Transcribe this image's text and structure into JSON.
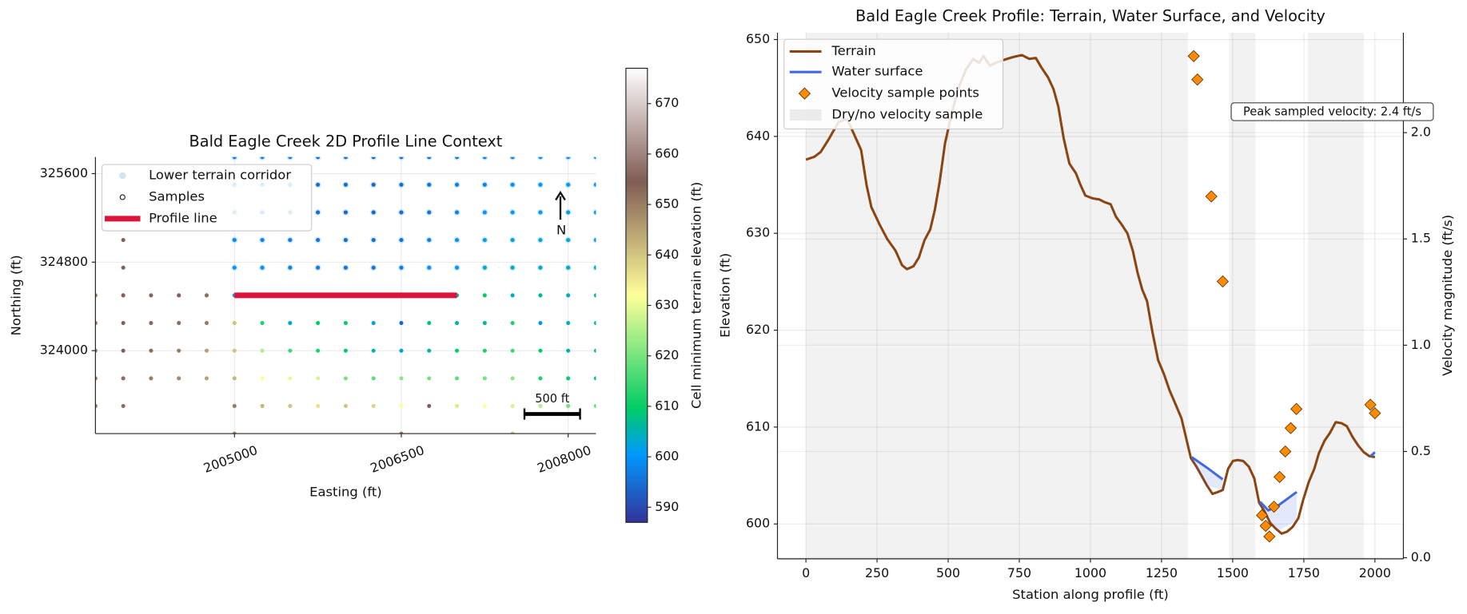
{
  "chart_data": [
    {
      "type": "scatter",
      "title": "Bald Eagle Creek 2D Profile Line Context",
      "x_label": "Easting (ft)",
      "y_label": "Northing (ft)",
      "xlim": [
        2003750,
        2008250
      ],
      "ylim": [
        323250,
        325750
      ],
      "xticks": [
        2005000,
        2006500,
        2008000
      ],
      "yticks": [
        324000,
        324800,
        325600
      ],
      "grid": true,
      "legend": "upper left",
      "colormap": "terrain",
      "clim": [
        587,
        677
      ],
      "colorbar_label": "Cell minimum terrain elevation (ft)",
      "cticks": [
        590,
        600,
        610,
        620,
        630,
        640,
        650,
        660,
        670
      ],
      "corridor": {
        "name": "Lower terrain corridor",
        "color": "#a6cee3",
        "eastings": [
          2005000,
          2005250,
          2005500,
          2005750,
          2006000,
          2006250,
          2006500,
          2006750,
          2007000,
          2007250,
          2007500,
          2007750,
          2008000,
          2008250
        ],
        "northings": [
          325750,
          325500,
          325250,
          325000,
          324750
        ]
      },
      "samples": {
        "name": "Samples",
        "eastings": [
          2003750,
          2004000,
          2004250,
          2004500,
          2004750,
          2005000,
          2005250,
          2005500,
          2005750,
          2006000,
          2006250,
          2006500,
          2006750,
          2007000,
          2007250,
          2007500,
          2007750,
          2008000,
          2008250
        ],
        "northings": [
          325750,
          325500,
          325250,
          325000,
          324750,
          324500,
          324250,
          324000,
          323750,
          323500,
          323250
        ],
        "elevation": [
          [
            null,
            null,
            null,
            null,
            null,
            598,
            597,
            597,
            596,
            596,
            595,
            596,
            596,
            597,
            598,
            598,
            599,
            600,
            600
          ],
          [
            null,
            null,
            null,
            null,
            null,
            597,
            596,
            596,
            595,
            595,
            594,
            595,
            596,
            597,
            598,
            599,
            600,
            601,
            600
          ],
          [
            null,
            null,
            null,
            null,
            null,
            598,
            597,
            596,
            595,
            594,
            594,
            595,
            596,
            598,
            600,
            601,
            602,
            602,
            601
          ],
          [
            null,
            655,
            null,
            null,
            null,
            599,
            598,
            597,
            596,
            595,
            595,
            596,
            598,
            600,
            602,
            603,
            603,
            603,
            602
          ],
          [
            null,
            655,
            null,
            null,
            null,
            600,
            599,
            598,
            597,
            596,
            596,
            597,
            599,
            601,
            603,
            604,
            604,
            604,
            603
          ],
          [
            650,
            655,
            656,
            655,
            652,
            601,
            600,
            599,
            598,
            597,
            597,
            598,
            600,
            606,
            610,
            604,
            606,
            604,
            605
          ],
          [
            650,
            655,
            656,
            652,
            650,
            640,
            612,
            603,
            610,
            610,
            603,
            594,
            608,
            605,
            606,
            612,
            600,
            604,
            606
          ],
          [
            650,
            655,
            652,
            650,
            645,
            640,
            625,
            615,
            612,
            610,
            606,
            603,
            606,
            610,
            612,
            615,
            610,
            606,
            608
          ],
          [
            650,
            652,
            650,
            648,
            645,
            642,
            632,
            630,
            628,
            620,
            618,
            622,
            620,
            618,
            620,
            622,
            612,
            610,
            608
          ],
          [
            650,
            652,
            null,
            null,
            null,
            650,
            642,
            640,
            636,
            640,
            638,
            632,
            655,
            636,
            632,
            628,
            625,
            620,
            618
          ],
          [
            null,
            null,
            null,
            null,
            null,
            648,
            null,
            null,
            null,
            null,
            null,
            650,
            null,
            null,
            null,
            640,
            null,
            null,
            null
          ]
        ]
      },
      "profile": {
        "name": "Profile line",
        "color": "#dc143c",
        "x": [
          2005000,
          2007000
        ],
        "y": [
          324500,
          324500
        ]
      },
      "north_label": "N",
      "scale_bar": {
        "label": "500 ft",
        "length": 500
      }
    },
    {
      "type": "line",
      "title": "Bald Eagle Creek Profile: Terrain, Water Surface, and Velocity",
      "x_label": "Station along profile (ft)",
      "y_label": "Elevation (ft)",
      "y2_label": "Velocity magnitude (ft/s)",
      "xlim": [
        -100,
        2100
      ],
      "ylim": [
        596.4,
        650.7
      ],
      "y2lim": [
        -0.005,
        2.47
      ],
      "xticks": [
        0,
        250,
        500,
        750,
        1000,
        1250,
        1500,
        1750,
        2000
      ],
      "yticks": [
        600,
        610,
        620,
        630,
        640,
        650
      ],
      "y2ticks": [
        {
          "value": 0,
          "label": "0.0"
        },
        0.5,
        {
          "value": 1,
          "label": "1.0"
        },
        1.5,
        {
          "value": 2,
          "label": "2.0"
        }
      ],
      "grid": true,
      "legend": "upper left",
      "series": [
        {
          "name": "Terrain",
          "color": "#8b4513",
          "x": [
            0,
            30,
            52,
            82,
            115,
            145,
            194,
            213,
            230,
            259,
            286,
            315,
            338,
            355,
            378,
            397,
            417,
            437,
            453,
            470,
            489,
            512,
            535,
            562,
            588,
            608,
            624,
            647,
            667,
            696,
            729,
            759,
            785,
            808,
            828,
            851,
            870,
            887,
            906,
            926,
            949,
            965,
            982,
            1008,
            1031,
            1051,
            1071,
            1090,
            1110,
            1130,
            1149,
            1166,
            1182,
            1199,
            1218,
            1238,
            1258,
            1278,
            1300,
            1320,
            1337,
            1353,
            1373,
            1392,
            1409,
            1429,
            1448,
            1465,
            1484,
            1501,
            1517,
            1537,
            1557,
            1576,
            1593,
            1612,
            1632,
            1652,
            1672,
            1691,
            1711,
            1731,
            1747,
            1767,
            1787,
            1803,
            1823,
            1842,
            1862,
            1882,
            1901,
            1921,
            1941,
            1961,
            1980,
            2000
          ],
          "values": [
            637.6,
            637.9,
            638.4,
            639.8,
            641.5,
            641.8,
            638.6,
            635.0,
            632.7,
            630.9,
            629.4,
            628.2,
            626.7,
            626.3,
            626.6,
            627.5,
            629.3,
            630.4,
            632.4,
            635.3,
            639.3,
            642.3,
            644.9,
            646.9,
            648.0,
            647.6,
            648.3,
            647.3,
            647.6,
            647.9,
            648.2,
            648.4,
            648.0,
            648.1,
            647.1,
            646.1,
            644.9,
            643.1,
            639.8,
            637.2,
            636.2,
            635.0,
            633.9,
            633.6,
            633.5,
            633.2,
            633.0,
            631.7,
            630.9,
            630.0,
            628.2,
            625.9,
            624.2,
            623.0,
            619.8,
            616.9,
            615.5,
            613.8,
            612.3,
            610.9,
            608.8,
            606.8,
            605.9,
            604.9,
            604.0,
            603.1,
            603.3,
            603.5,
            605.7,
            606.5,
            606.6,
            606.5,
            605.9,
            604.7,
            602.2,
            601.3,
            600.1,
            599.5,
            599.0,
            599.2,
            599.7,
            600.6,
            602.4,
            604.3,
            605.7,
            607.3,
            608.6,
            609.4,
            610.5,
            610.4,
            610.1,
            609.0,
            608.1,
            607.4,
            607.0,
            606.9
          ]
        },
        {
          "name": "Water surface",
          "color": "#4169e1",
          "x": [
            1356,
            1410,
            1465,
            null,
            1596,
            1625,
            1660,
            1725,
            null,
            1985,
            2000
          ],
          "values": [
            606.9,
            605.8,
            604.6,
            null,
            602.3,
            601.4,
            601.9,
            603.3,
            null,
            607.0,
            607.4
          ]
        },
        {
          "name": "Velocity sample points",
          "color": "#ff8c00",
          "axis": "y2",
          "marker": "diamond",
          "x": [
            1363,
            1376,
            1425,
            1465,
            1603,
            1616,
            1629,
            1645,
            1665,
            1685,
            1704,
            1724,
            1984,
            2000
          ],
          "values": [
            2.36,
            2.25,
            1.7,
            1.3,
            0.2,
            0.15,
            0.1,
            0.24,
            0.38,
            0.5,
            0.61,
            0.7,
            0.72,
            0.68
          ]
        }
      ],
      "dry": {
        "name": "Dry/no velocity sample",
        "color": "#d9d9d9",
        "ranges": [
          [
            0,
            1343
          ],
          [
            1488,
            1580
          ],
          [
            1764,
            1961
          ]
        ]
      },
      "annotation": "Peak sampled velocity: 2.4 ft/s"
    }
  ]
}
